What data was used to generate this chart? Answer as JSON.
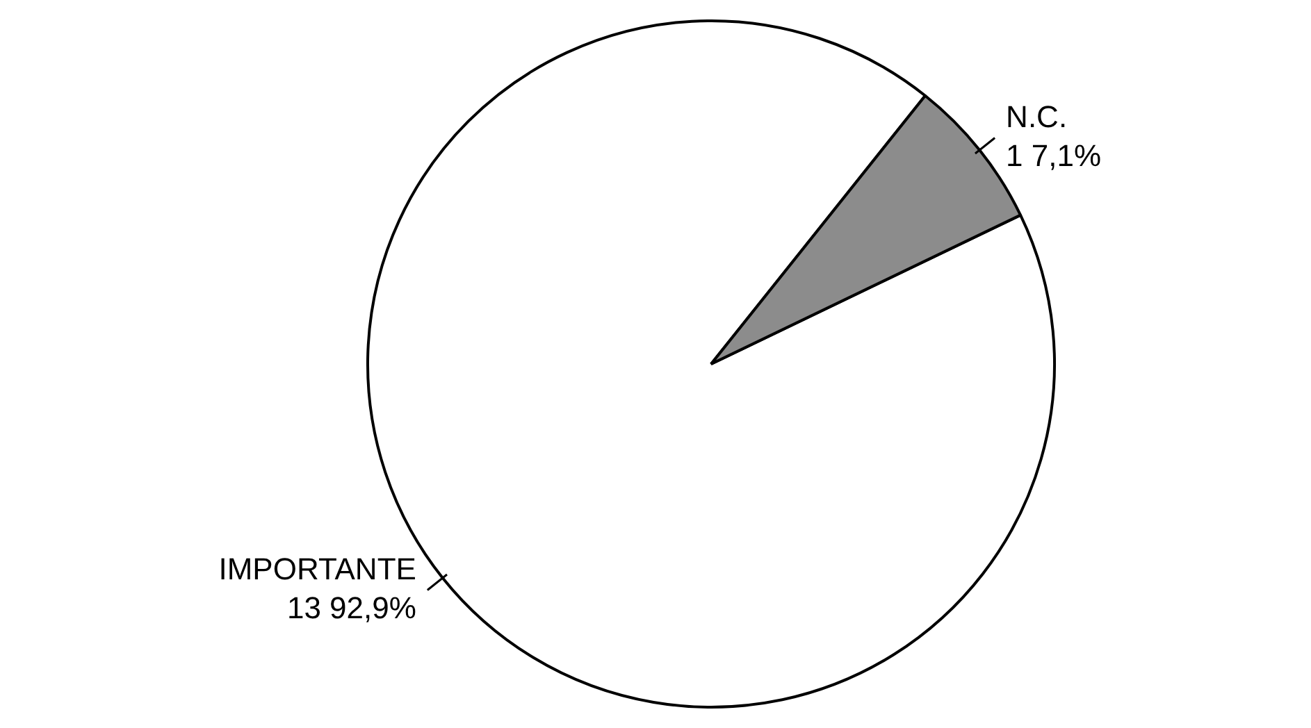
{
  "chart_data": {
    "type": "pie",
    "categories": [
      "IMPORTANTE",
      "N.C."
    ],
    "values": [
      13,
      1
    ],
    "value_labels": [
      "13 92,9%",
      "1 7,1%"
    ],
    "colors": [
      "#ffffff",
      "#8c8c8c"
    ],
    "legend": false
  }
}
